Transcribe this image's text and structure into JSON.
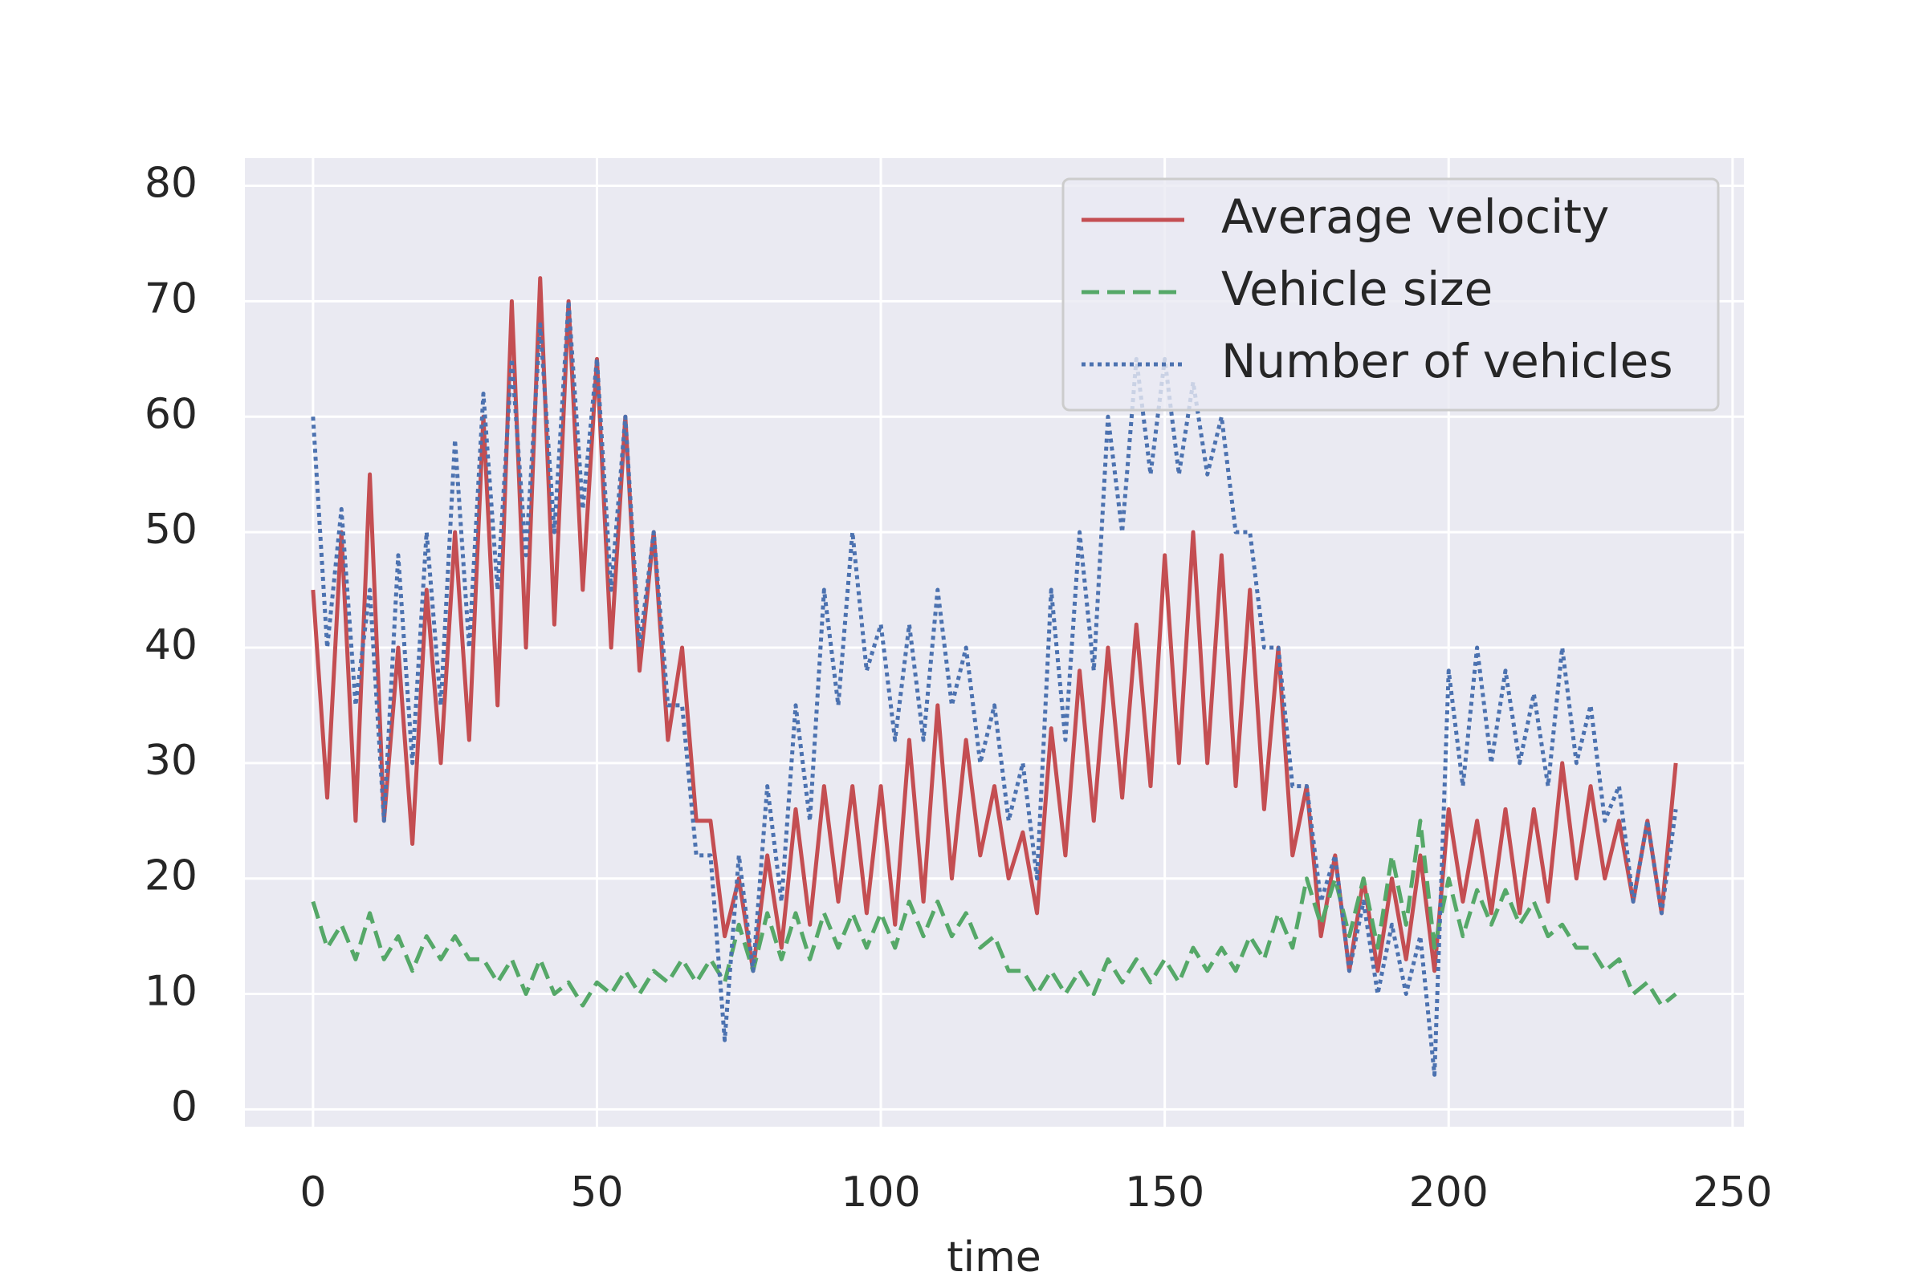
{
  "chart_data": {
    "type": "line",
    "x_label": "time",
    "x": [
      0,
      2.5,
      5,
      7.5,
      10,
      12.5,
      15,
      17.5,
      20,
      22.5,
      25,
      27.5,
      30,
      32.5,
      35,
      37.5,
      40,
      42.5,
      45,
      47.5,
      50,
      52.5,
      55,
      57.5,
      60,
      62.5,
      65,
      67.5,
      70,
      72.5,
      75,
      77.5,
      80,
      82.5,
      85,
      87.5,
      90,
      92.5,
      95,
      97.5,
      100,
      102.5,
      105,
      107.5,
      110,
      112.5,
      115,
      117.5,
      120,
      122.5,
      125,
      127.5,
      130,
      132.5,
      135,
      137.5,
      140,
      142.5,
      145,
      147.5,
      150,
      152.5,
      155,
      157.5,
      160,
      162.5,
      165,
      167.5,
      170,
      172.5,
      175,
      177.5,
      180,
      182.5,
      185,
      187.5,
      190,
      192.5,
      195,
      197.5,
      200,
      202.5,
      205,
      207.5,
      210,
      212.5,
      215,
      217.5,
      220,
      222.5,
      225,
      227.5,
      230,
      232.5,
      235,
      237.5,
      240
    ],
    "series": [
      {
        "name": "Average velocity",
        "color": "#c44e52",
        "linestyle": "solid",
        "values": [
          45,
          27,
          50,
          25,
          55,
          25,
          40,
          23,
          45,
          30,
          50,
          32,
          60,
          35,
          70,
          40,
          72,
          42,
          70,
          45,
          65,
          40,
          60,
          38,
          50,
          32,
          40,
          25,
          25,
          15,
          20,
          12,
          22,
          14,
          26,
          16,
          28,
          18,
          28,
          17,
          28,
          16,
          32,
          18,
          35,
          20,
          32,
          22,
          28,
          20,
          24,
          17,
          33,
          22,
          38,
          25,
          40,
          27,
          42,
          28,
          48,
          30,
          50,
          30,
          48,
          28,
          45,
          26,
          40,
          22,
          28,
          15,
          22,
          12,
          20,
          12,
          20,
          13,
          22,
          12,
          26,
          18,
          25,
          17,
          26,
          17,
          26,
          18,
          30,
          20,
          28,
          20,
          25,
          18,
          25,
          17,
          30
        ]
      },
      {
        "name": "Vehicle size",
        "color": "#55a868",
        "linestyle": "dashed",
        "values": [
          18,
          14,
          16,
          13,
          17,
          13,
          15,
          12,
          15,
          13,
          15,
          13,
          13,
          11,
          13,
          10,
          13,
          10,
          11,
          9,
          11,
          10,
          12,
          10,
          12,
          11,
          13,
          11,
          13,
          11,
          16,
          12,
          17,
          13,
          17,
          13,
          17,
          14,
          17,
          14,
          17,
          14,
          18,
          15,
          18,
          15,
          17,
          14,
          15,
          12,
          12,
          10,
          12,
          10,
          12,
          10,
          13,
          11,
          13,
          11,
          13,
          11,
          14,
          12,
          14,
          12,
          15,
          13,
          17,
          14,
          20,
          16,
          20,
          15,
          20,
          14,
          22,
          16,
          25,
          14,
          20,
          15,
          19,
          16,
          19,
          16,
          18,
          15,
          16,
          14,
          14,
          12,
          13,
          10,
          11,
          9,
          10
        ]
      },
      {
        "name": "Number of vehicles",
        "color": "#4c72b0",
        "linestyle": "dotted",
        "values": [
          60,
          40,
          52,
          35,
          45,
          25,
          48,
          30,
          50,
          35,
          58,
          40,
          62,
          45,
          65,
          48,
          68,
          50,
          70,
          52,
          65,
          45,
          60,
          40,
          50,
          35,
          35,
          22,
          22,
          6,
          22,
          12,
          28,
          18,
          35,
          25,
          45,
          35,
          50,
          38,
          42,
          32,
          42,
          32,
          45,
          35,
          40,
          30,
          35,
          25,
          30,
          20,
          45,
          32,
          50,
          38,
          60,
          50,
          65,
          55,
          65,
          55,
          63,
          55,
          60,
          50,
          50,
          40,
          40,
          28,
          28,
          18,
          22,
          12,
          18,
          10,
          16,
          10,
          15,
          3,
          38,
          28,
          40,
          30,
          38,
          30,
          36,
          28,
          40,
          30,
          35,
          25,
          28,
          18,
          25,
          17,
          26
        ]
      }
    ],
    "xlim": [
      -12,
      252
    ],
    "xticks": [
      0,
      50,
      100,
      150,
      200,
      250
    ],
    "ylim": [
      -1.5,
      82.4
    ],
    "yticks": [
      0,
      10,
      20,
      30,
      40,
      50,
      60,
      70,
      80
    ],
    "grid": true,
    "legend": "upper right"
  }
}
